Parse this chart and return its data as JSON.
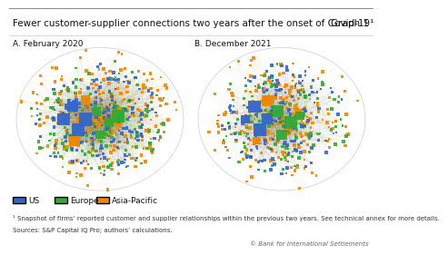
{
  "title": "Fewer customer-supplier connections two years after the onset of Covid-19¹",
  "graph_label": "Graph 1",
  "panel_a_label": "A. February 2020",
  "panel_b_label": "B. December 2021",
  "legend_items": [
    {
      "label": "US",
      "color": "#3366cc"
    },
    {
      "label": "Europe",
      "color": "#33aa33"
    },
    {
      "label": "Asia-Pacific",
      "color": "#ee8800"
    }
  ],
  "footnote1": "¹ Snapshot of firms’ reported customer and supplier relationships within the previous two years. See technical annex for more details.",
  "footnote2": "Sources: S&P Capital IQ Pro; authors’ calculations.",
  "copyright": "© Bank for International Settlements",
  "us_color": "#3366cc",
  "europe_color": "#33aa33",
  "asia_color": "#ee8800",
  "background_color": "#ffffff",
  "title_fontsize": 7.5,
  "panel_fontsize": 6.5,
  "legend_fontsize": 6.5,
  "footnote_fontsize": 5.0
}
